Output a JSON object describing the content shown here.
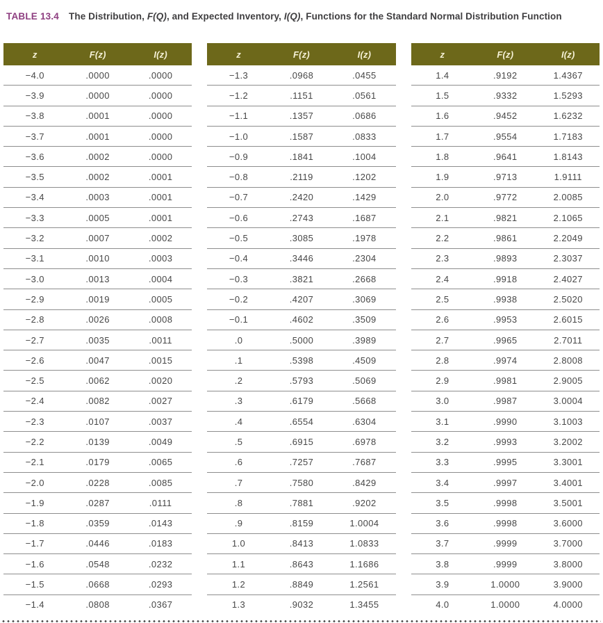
{
  "title": {
    "tag": "TABLE 13.4",
    "segments": [
      {
        "text": "The Distribution, ",
        "italic": false
      },
      {
        "text": "F(Q)",
        "italic": true
      },
      {
        "text": ", and Expected Inventory, ",
        "italic": false
      },
      {
        "text": "I(Q)",
        "italic": true
      },
      {
        "text": ", Functions for the Standard Normal Distribution Function",
        "italic": false
      }
    ]
  },
  "columns": [
    "z",
    "F(z)",
    "I(z)"
  ],
  "colors": {
    "header_bg": "#6d681a",
    "header_text": "#f5f1d6",
    "tag_color": "#8e3e80",
    "title_color": "#3f3e40",
    "cell_color": "#474747",
    "divider": "#8d8d8d",
    "dot_color": "#4a4a4a"
  },
  "chart_data": {
    "type": "table",
    "title": "The Distribution, F(Q), and Expected Inventory, I(Q), Functions for the Standard Normal Distribution Function",
    "columns": [
      "z",
      "F(z)",
      "I(z)"
    ]
  },
  "tables": [
    {
      "rows": [
        [
          "−4.0",
          ".0000",
          ".0000"
        ],
        [
          "−3.9",
          ".0000",
          ".0000"
        ],
        [
          "−3.8",
          ".0001",
          ".0000"
        ],
        [
          "−3.7",
          ".0001",
          ".0000"
        ],
        [
          "−3.6",
          ".0002",
          ".0000"
        ],
        [
          "−3.5",
          ".0002",
          ".0001"
        ],
        [
          "−3.4",
          ".0003",
          ".0001"
        ],
        [
          "−3.3",
          ".0005",
          ".0001"
        ],
        [
          "−3.2",
          ".0007",
          ".0002"
        ],
        [
          "−3.1",
          ".0010",
          ".0003"
        ],
        [
          "−3.0",
          ".0013",
          ".0004"
        ],
        [
          "−2.9",
          ".0019",
          ".0005"
        ],
        [
          "−2.8",
          ".0026",
          ".0008"
        ],
        [
          "−2.7",
          ".0035",
          ".0011"
        ],
        [
          "−2.6",
          ".0047",
          ".0015"
        ],
        [
          "−2.5",
          ".0062",
          ".0020"
        ],
        [
          "−2.4",
          ".0082",
          ".0027"
        ],
        [
          "−2.3",
          ".0107",
          ".0037"
        ],
        [
          "−2.2",
          ".0139",
          ".0049"
        ],
        [
          "−2.1",
          ".0179",
          ".0065"
        ],
        [
          "−2.0",
          ".0228",
          ".0085"
        ],
        [
          "−1.9",
          ".0287",
          ".0111"
        ],
        [
          "−1.8",
          ".0359",
          ".0143"
        ],
        [
          "−1.7",
          ".0446",
          ".0183"
        ],
        [
          "−1.6",
          ".0548",
          ".0232"
        ],
        [
          "−1.5",
          ".0668",
          ".0293"
        ],
        [
          "−1.4",
          ".0808",
          ".0367"
        ]
      ]
    },
    {
      "rows": [
        [
          "−1.3",
          ".0968",
          ".0455"
        ],
        [
          "−1.2",
          ".1151",
          ".0561"
        ],
        [
          "−1.1",
          ".1357",
          ".0686"
        ],
        [
          "−1.0",
          ".1587",
          ".0833"
        ],
        [
          "−0.9",
          ".1841",
          ".1004"
        ],
        [
          "−0.8",
          ".2119",
          ".1202"
        ],
        [
          "−0.7",
          ".2420",
          ".1429"
        ],
        [
          "−0.6",
          ".2743",
          ".1687"
        ],
        [
          "−0.5",
          ".3085",
          ".1978"
        ],
        [
          "−0.4",
          ".3446",
          ".2304"
        ],
        [
          "−0.3",
          ".3821",
          ".2668"
        ],
        [
          "−0.2",
          ".4207",
          ".3069"
        ],
        [
          "−0.1",
          ".4602",
          ".3509"
        ],
        [
          ".0",
          ".5000",
          ".3989"
        ],
        [
          ".1",
          ".5398",
          ".4509"
        ],
        [
          ".2",
          ".5793",
          ".5069"
        ],
        [
          ".3",
          ".6179",
          ".5668"
        ],
        [
          ".4",
          ".6554",
          ".6304"
        ],
        [
          ".5",
          ".6915",
          ".6978"
        ],
        [
          ".6",
          ".7257",
          ".7687"
        ],
        [
          ".7",
          ".7580",
          ".8429"
        ],
        [
          ".8",
          ".7881",
          ".9202"
        ],
        [
          ".9",
          ".8159",
          "1.0004"
        ],
        [
          "1.0",
          ".8413",
          "1.0833"
        ],
        [
          "1.1",
          ".8643",
          "1.1686"
        ],
        [
          "1.2",
          ".8849",
          "1.2561"
        ],
        [
          "1.3",
          ".9032",
          "1.3455"
        ]
      ]
    },
    {
      "rows": [
        [
          "1.4",
          ".9192",
          "1.4367"
        ],
        [
          "1.5",
          ".9332",
          "1.5293"
        ],
        [
          "1.6",
          ".9452",
          "1.6232"
        ],
        [
          "1.7",
          ".9554",
          "1.7183"
        ],
        [
          "1.8",
          ".9641",
          "1.8143"
        ],
        [
          "1.9",
          ".9713",
          "1.9111"
        ],
        [
          "2.0",
          ".9772",
          "2.0085"
        ],
        [
          "2.1",
          ".9821",
          "2.1065"
        ],
        [
          "2.2",
          ".9861",
          "2.2049"
        ],
        [
          "2.3",
          ".9893",
          "2.3037"
        ],
        [
          "2.4",
          ".9918",
          "2.4027"
        ],
        [
          "2.5",
          ".9938",
          "2.5020"
        ],
        [
          "2.6",
          ".9953",
          "2.6015"
        ],
        [
          "2.7",
          ".9965",
          "2.7011"
        ],
        [
          "2.8",
          ".9974",
          "2.8008"
        ],
        [
          "2.9",
          ".9981",
          "2.9005"
        ],
        [
          "3.0",
          ".9987",
          "3.0004"
        ],
        [
          "3.1",
          ".9990",
          "3.1003"
        ],
        [
          "3.2",
          ".9993",
          "3.2002"
        ],
        [
          "3.3",
          ".9995",
          "3.3001"
        ],
        [
          "3.4",
          ".9997",
          "3.4001"
        ],
        [
          "3.5",
          ".9998",
          "3.5001"
        ],
        [
          "3.6",
          ".9998",
          "3.6000"
        ],
        [
          "3.7",
          ".9999",
          "3.7000"
        ],
        [
          "3.8",
          ".9999",
          "3.8000"
        ],
        [
          "3.9",
          "1.0000",
          "3.9000"
        ],
        [
          "4.0",
          "1.0000",
          "4.0000"
        ]
      ]
    }
  ]
}
